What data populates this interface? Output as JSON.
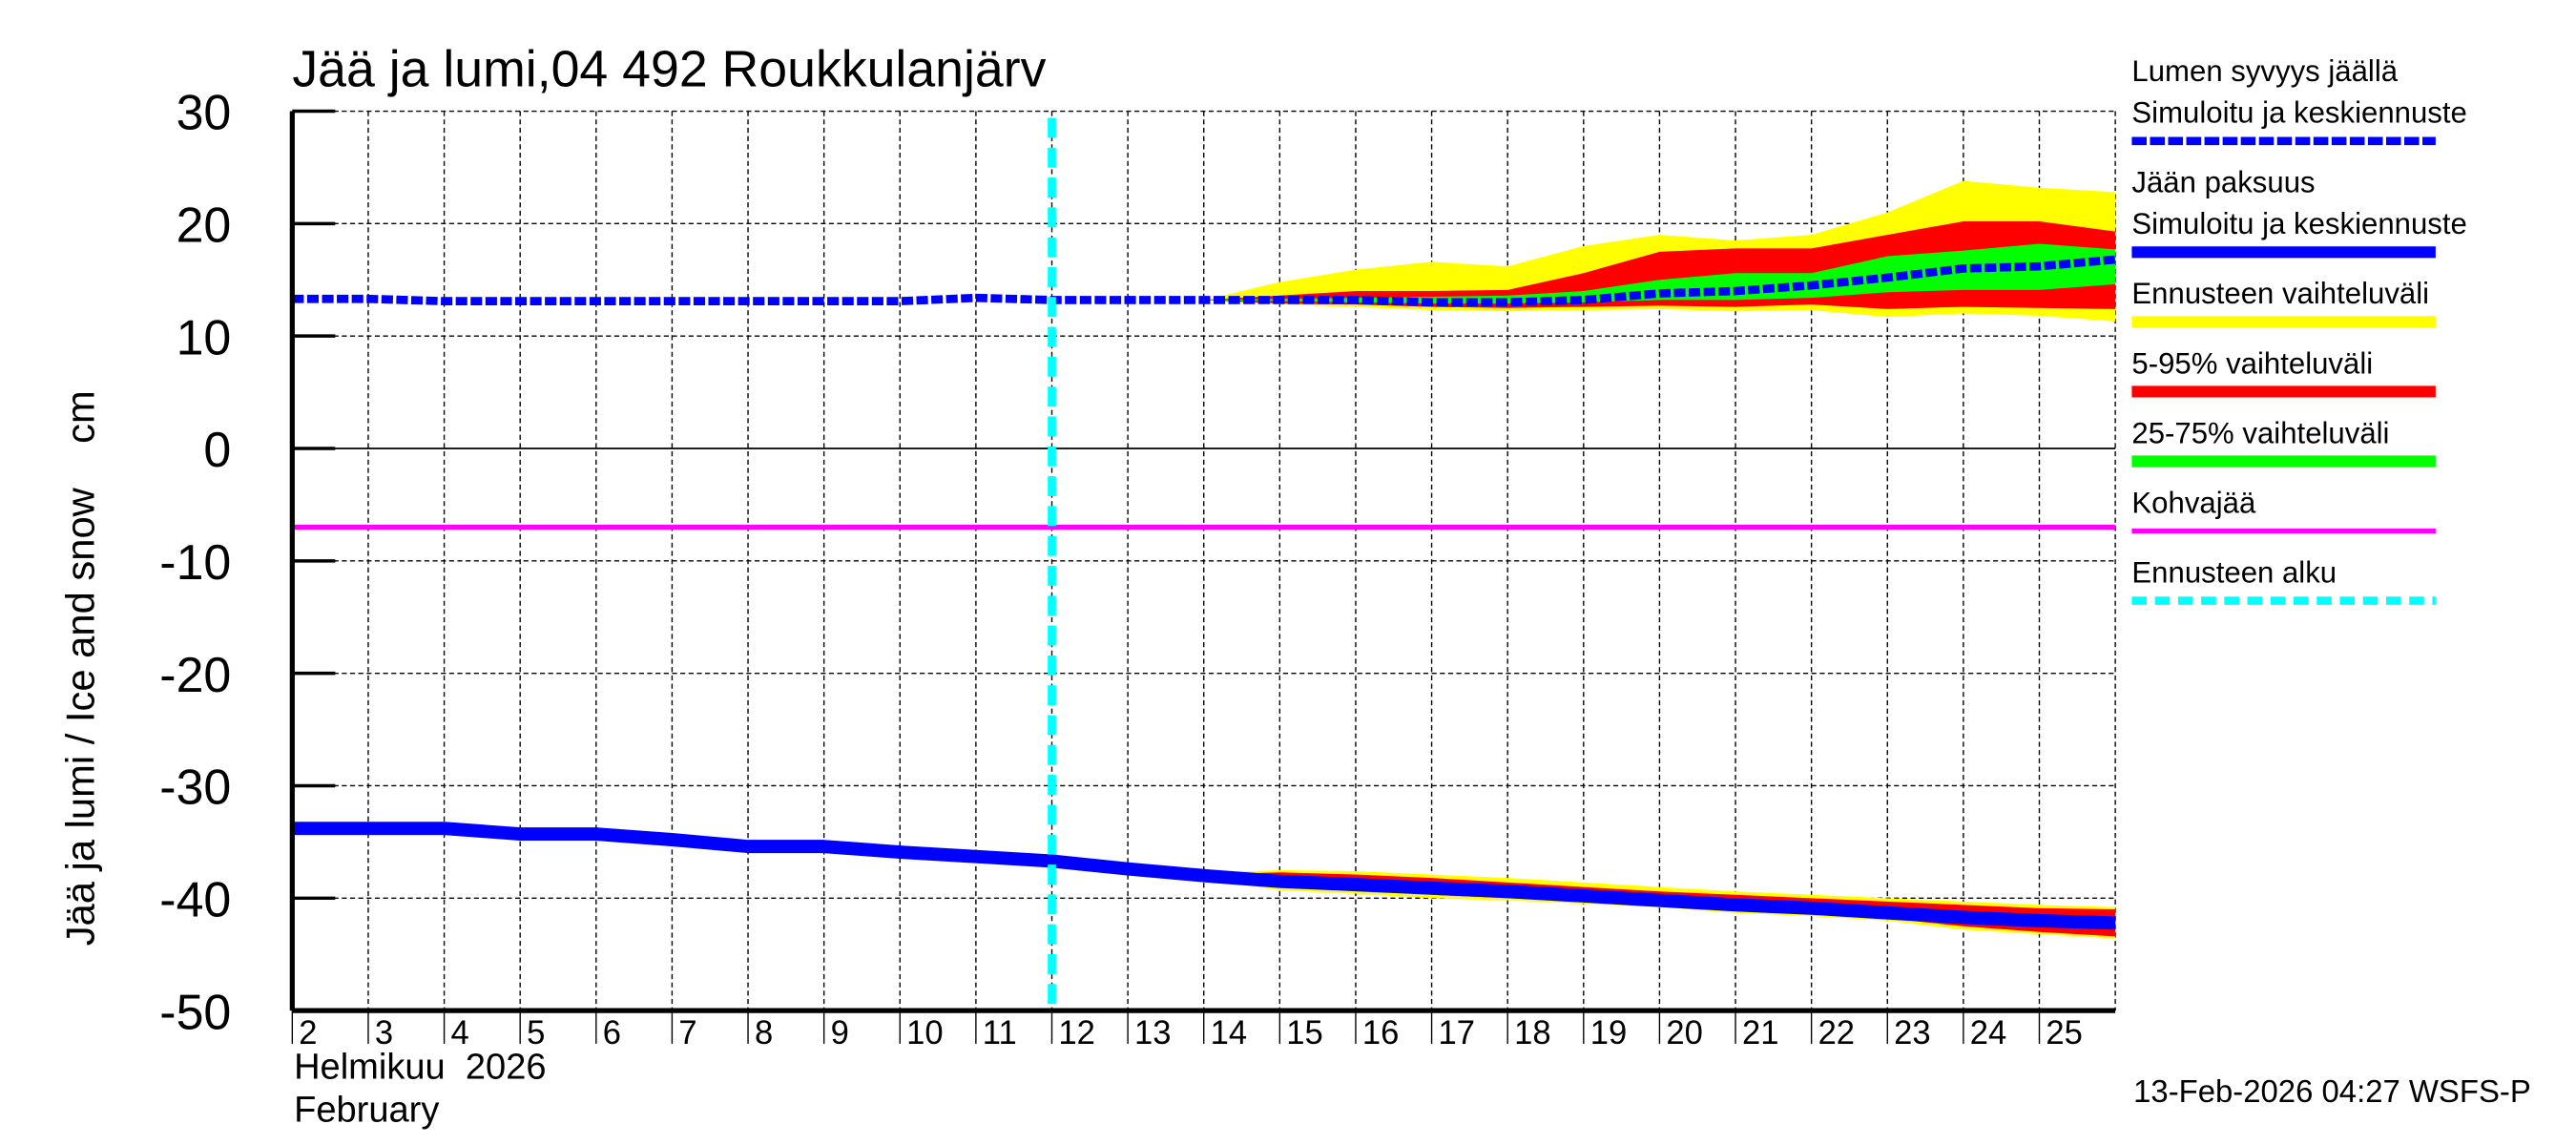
{
  "chart_data": {
    "type": "area",
    "title": "Jää ja lumi,04 492 Roukkulanjärv",
    "ylabel": "Jää ja lumi / Ice and snow    cm",
    "xlabel_line1": "Helmikuu  2026",
    "xlabel_line2": "February",
    "ylim": [
      -50,
      30
    ],
    "yticks": [
      30,
      20,
      10,
      0,
      -10,
      -20,
      -30,
      -40,
      -50
    ],
    "xticks": [
      2,
      3,
      4,
      5,
      6,
      7,
      8,
      9,
      10,
      11,
      12,
      13,
      14,
      15,
      16,
      17,
      18,
      19,
      20,
      21,
      22,
      23,
      24,
      25
    ],
    "xlim_days": [
      2,
      26
    ],
    "grid": true,
    "legend_position": "right",
    "forecast_start_day": 12,
    "kohvajaa_level": -7,
    "x": [
      2,
      3,
      4,
      5,
      6,
      7,
      8,
      9,
      10,
      11,
      12,
      13,
      14,
      15,
      16,
      17,
      18,
      19,
      20,
      21,
      22,
      23,
      24,
      25,
      26
    ],
    "series": [
      {
        "name": "Lumen syvyys jäällä – Simuloitu ja keskiennuste",
        "style": "dashed",
        "color": "#0000ff",
        "values": [
          13.3,
          13.3,
          13.1,
          13.1,
          13.1,
          13.1,
          13.1,
          13.1,
          13.1,
          13.4,
          13.2,
          13.2,
          13.2,
          13.2,
          13.2,
          13.0,
          13.0,
          13.2,
          13.8,
          14.0,
          14.5,
          15.2,
          16.0,
          16.2,
          16.8
        ]
      },
      {
        "name": "Jään paksuus – Simuloitu ja keskiennuste",
        "style": "solid",
        "color": "#0000ff",
        "values": [
          -33.8,
          -33.8,
          -33.8,
          -34.3,
          -34.3,
          -34.8,
          -35.4,
          -35.4,
          -35.9,
          -36.3,
          -36.7,
          -37.4,
          -38.0,
          -38.5,
          -38.8,
          -39.1,
          -39.4,
          -39.8,
          -40.2,
          -40.6,
          -40.9,
          -41.3,
          -41.7,
          -42.0,
          -42.2
        ]
      }
    ],
    "bands": [
      {
        "name": "Ennusteen vaihteluväli",
        "color": "#ffff00",
        "snow_upper": [
          null,
          null,
          null,
          null,
          null,
          null,
          null,
          null,
          null,
          null,
          null,
          null,
          13.2,
          14.8,
          15.9,
          16.6,
          16.2,
          18.0,
          19.0,
          18.5,
          19.0,
          21.0,
          23.8,
          23.2,
          22.8
        ],
        "snow_lower": [
          null,
          null,
          null,
          null,
          null,
          null,
          null,
          null,
          null,
          null,
          null,
          null,
          13.2,
          12.8,
          12.6,
          12.3,
          12.2,
          12.3,
          12.4,
          12.2,
          12.3,
          11.7,
          12.0,
          11.8,
          11.3
        ],
        "ice_upper": [
          null,
          null,
          null,
          null,
          null,
          null,
          null,
          null,
          null,
          null,
          null,
          null,
          -37.8,
          -37.5,
          -37.6,
          -37.9,
          -38.2,
          -38.6,
          -39.0,
          -39.4,
          -39.7,
          -40.0,
          -40.3,
          -40.6,
          -40.8
        ],
        "ice_lower": [
          null,
          null,
          null,
          null,
          null,
          null,
          null,
          null,
          null,
          null,
          null,
          null,
          -38.2,
          -39.3,
          -39.6,
          -40.0,
          -40.2,
          -40.5,
          -40.8,
          -41.3,
          -41.6,
          -42.0,
          -42.8,
          -43.2,
          -43.6
        ]
      },
      {
        "name": "5-95% vaihteluväli",
        "color": "#ff0000",
        "snow_upper": [
          null,
          null,
          null,
          null,
          null,
          null,
          null,
          null,
          null,
          null,
          null,
          null,
          13.2,
          13.6,
          14.0,
          14.0,
          14.1,
          15.6,
          17.5,
          17.8,
          17.8,
          19.0,
          20.2,
          20.2,
          19.3
        ],
        "snow_lower": [
          null,
          null,
          null,
          null,
          null,
          null,
          null,
          null,
          null,
          null,
          null,
          null,
          13.2,
          12.9,
          12.8,
          12.6,
          12.5,
          12.6,
          12.7,
          12.6,
          12.8,
          12.4,
          12.6,
          12.5,
          12.4
        ],
        "ice_upper": [
          null,
          null,
          null,
          null,
          null,
          null,
          null,
          null,
          null,
          null,
          null,
          null,
          -37.9,
          -37.7,
          -37.9,
          -38.2,
          -38.6,
          -39.0,
          -39.4,
          -39.7,
          -40.0,
          -40.3,
          -40.6,
          -40.9,
          -41.0
        ],
        "ice_lower": [
          null,
          null,
          null,
          null,
          null,
          null,
          null,
          null,
          null,
          null,
          null,
          null,
          -38.1,
          -39.0,
          -39.3,
          -39.7,
          -40.0,
          -40.3,
          -40.6,
          -41.0,
          -41.4,
          -41.8,
          -42.5,
          -43.0,
          -43.4
        ]
      },
      {
        "name": "25-75% vaihteluväli",
        "color": "#00ff00",
        "snow_upper": [
          null,
          null,
          null,
          null,
          null,
          null,
          null,
          null,
          null,
          null,
          null,
          null,
          13.2,
          13.3,
          13.4,
          13.5,
          13.6,
          14.0,
          15.0,
          15.6,
          15.6,
          17.1,
          17.6,
          18.2,
          17.7
        ],
        "snow_lower": [
          null,
          null,
          null,
          null,
          null,
          null,
          null,
          null,
          null,
          null,
          null,
          null,
          13.2,
          13.1,
          13.0,
          12.9,
          12.9,
          13.0,
          13.2,
          13.2,
          13.4,
          13.9,
          14.1,
          14.1,
          14.6
        ],
        "ice_upper": [
          null,
          null,
          null,
          null,
          null,
          null,
          null,
          null,
          null,
          null,
          null,
          null,
          -38.0,
          -38.4,
          -38.7,
          -39.0,
          -39.3,
          -39.7,
          -40.1,
          -40.5,
          -40.8,
          -41.1,
          -41.5,
          -41.8,
          -42.0
        ],
        "ice_lower": [
          null,
          null,
          null,
          null,
          null,
          null,
          null,
          null,
          null,
          null,
          null,
          null,
          -38.0,
          -38.6,
          -38.9,
          -39.2,
          -39.5,
          -39.9,
          -40.3,
          -40.7,
          -41.0,
          -41.5,
          -41.9,
          -42.3,
          -42.5
        ]
      }
    ]
  },
  "legend": {
    "items": [
      {
        "line1": "Lumen syvyys jäällä",
        "line2": "Simuloitu ja keskiennuste",
        "color": "#0000ff",
        "style": "dashed"
      },
      {
        "line1": "Jään paksuus",
        "line2": "Simuloitu ja keskiennuste",
        "color": "#0000ff",
        "style": "solid"
      },
      {
        "line1": "Ennusteen vaihteluväli",
        "color": "#ffff00",
        "style": "solid"
      },
      {
        "line1": "5-95% vaihteluväli",
        "color": "#ff0000",
        "style": "solid"
      },
      {
        "line1": "25-75% vaihteluväli",
        "color": "#00ff00",
        "style": "solid"
      },
      {
        "line1": "Kohvajää",
        "color": "#ff00ff",
        "style": "solid"
      },
      {
        "line1": "Ennusteen alku",
        "color": "#00ffff",
        "style": "dashed"
      }
    ]
  },
  "footer": {
    "timestamp": "13-Feb-2026 04:27 WSFS-P"
  },
  "colors": {
    "snow_line": "#0000ff",
    "ice_line": "#0000ff",
    "range_all": "#ffff00",
    "range_5_95": "#ff0000",
    "range_25_75": "#00ff00",
    "kohvajaa": "#ff00ff",
    "forecast_start": "#00ffff"
  }
}
